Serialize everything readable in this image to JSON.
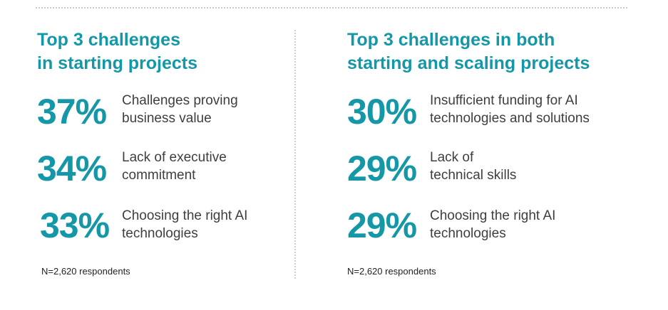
{
  "left": {
    "heading": [
      "Top 3 challenges",
      "in starting projects"
    ],
    "stats": [
      {
        "pct": "37%",
        "desc": [
          "Challenges proving",
          "business value"
        ]
      },
      {
        "pct": "34%",
        "desc": [
          "Lack of executive",
          "commitment"
        ]
      },
      {
        "pct": "33%",
        "desc": [
          "Choosing the right AI",
          "technologies"
        ]
      }
    ],
    "note": "N=2,620 respondents"
  },
  "right": {
    "heading": [
      "Top 3 challenges in both",
      "starting and scaling projects"
    ],
    "stats": [
      {
        "pct": "30%",
        "desc": [
          "Insufficient funding for AI",
          "technologies and solutions"
        ]
      },
      {
        "pct": "29%",
        "desc": [
          "Lack of",
          "technical skills"
        ]
      },
      {
        "pct": "29%",
        "desc": [
          "Choosing the right AI",
          "technologies"
        ]
      }
    ],
    "note": "N=2,620 respondents"
  },
  "colors": {
    "accent": "#1497a6",
    "text": "#3e3e3e"
  }
}
